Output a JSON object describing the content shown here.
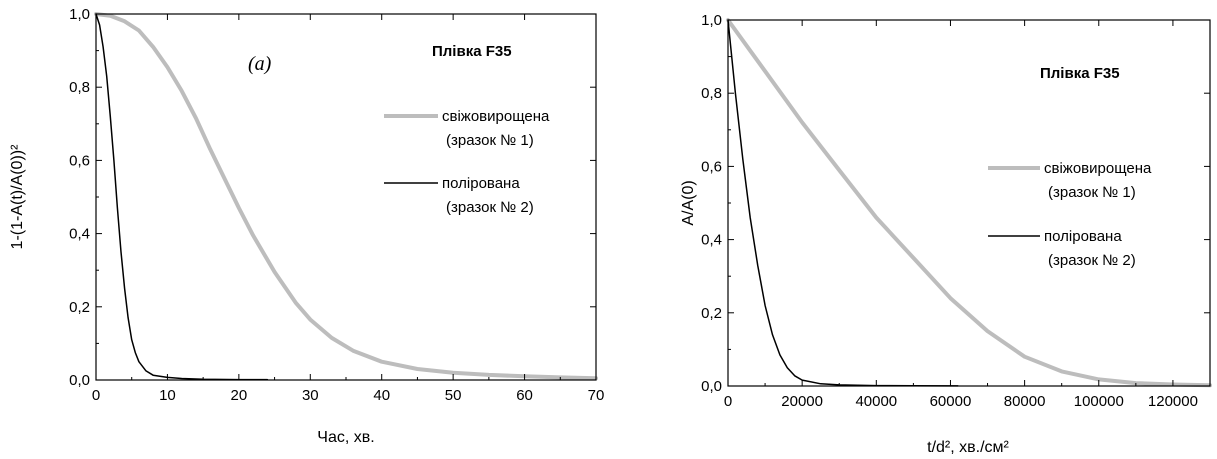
{
  "chart_data": [
    {
      "type": "line",
      "title": "Плівка F35",
      "panel_label": "(a)",
      "xlabel": "Час, хв.",
      "ylabel": "1-(1-A(t)/A(0))²",
      "xlim": [
        0,
        70
      ],
      "ylim": [
        0,
        1.0
      ],
      "xticks": [
        0,
        10,
        20,
        30,
        40,
        50,
        60,
        70
      ],
      "yticks": [
        0,
        0.2,
        0.4,
        0.6,
        0.8,
        1.0
      ],
      "xtick_labels": [
        "0",
        "10",
        "20",
        "30",
        "40",
        "50",
        "60",
        "70"
      ],
      "ytick_labels": [
        "0,0",
        "0,2",
        "0,4",
        "0,6",
        "0,8",
        "1,0"
      ],
      "grid": false,
      "legend_position": "right",
      "series": [
        {
          "name": "свіжовирощена",
          "name_sub": "(зразок № 1)",
          "color": "#bdbdbd",
          "x": [
            0,
            2,
            4,
            6,
            8,
            10,
            12,
            14,
            16,
            18,
            20,
            22,
            25,
            28,
            30,
            33,
            36,
            40,
            45,
            50,
            55,
            60,
            65,
            70
          ],
          "y": [
            1.0,
            0.995,
            0.98,
            0.955,
            0.91,
            0.855,
            0.79,
            0.715,
            0.63,
            0.55,
            0.47,
            0.395,
            0.295,
            0.21,
            0.165,
            0.115,
            0.08,
            0.05,
            0.03,
            0.02,
            0.014,
            0.01,
            0.007,
            0.005
          ]
        },
        {
          "name": "полірована",
          "name_sub": "(зразок № 2)",
          "color": "#000000",
          "x": [
            0,
            0.5,
            1,
            1.5,
            2,
            2.5,
            3,
            3.5,
            4,
            4.5,
            5,
            5.5,
            6,
            7,
            8,
            10,
            12,
            15,
            20,
            24
          ],
          "y": [
            1.0,
            0.97,
            0.91,
            0.83,
            0.72,
            0.6,
            0.47,
            0.35,
            0.25,
            0.17,
            0.11,
            0.075,
            0.05,
            0.025,
            0.013,
            0.007,
            0.004,
            0.002,
            0.001,
            0.001
          ]
        }
      ]
    },
    {
      "type": "line",
      "title": "Плівка F35",
      "xlabel": "t/d², хв./см²",
      "ylabel": "A/A(0)",
      "xlim": [
        0,
        130000
      ],
      "ylim": [
        0,
        1.0
      ],
      "xticks": [
        0,
        20000,
        40000,
        60000,
        80000,
        100000,
        120000
      ],
      "yticks": [
        0,
        0.2,
        0.4,
        0.6,
        0.8,
        1.0
      ],
      "xtick_labels": [
        "0",
        "20000",
        "40000",
        "60000",
        "80000",
        "100000",
        "120000"
      ],
      "ytick_labels": [
        "0,0",
        "0,2",
        "0,4",
        "0,6",
        "0,8",
        "1,0"
      ],
      "grid": false,
      "legend_position": "right",
      "series": [
        {
          "name": "свіжовирощена",
          "name_sub": "(зразок № 1)",
          "color": "#bdbdbd",
          "x": [
            0,
            5000,
            10000,
            20000,
            30000,
            40000,
            50000,
            60000,
            70000,
            80000,
            90000,
            100000,
            110000,
            120000,
            130000
          ],
          "y": [
            1.0,
            0.93,
            0.86,
            0.72,
            0.59,
            0.46,
            0.35,
            0.24,
            0.15,
            0.08,
            0.04,
            0.018,
            0.008,
            0.004,
            0.002
          ]
        },
        {
          "name": "полірована",
          "name_sub": "(зразок № 2)",
          "color": "#000000",
          "x": [
            0,
            1000,
            2000,
            3000,
            4000,
            5000,
            6000,
            8000,
            10000,
            12000,
            14000,
            16000,
            18000,
            20000,
            25000,
            30000,
            40000,
            50000,
            62000
          ],
          "y": [
            1.0,
            0.9,
            0.8,
            0.71,
            0.62,
            0.54,
            0.46,
            0.33,
            0.22,
            0.14,
            0.085,
            0.05,
            0.028,
            0.016,
            0.006,
            0.003,
            0.001,
            0.0005,
            0.0002
          ]
        }
      ]
    }
  ]
}
